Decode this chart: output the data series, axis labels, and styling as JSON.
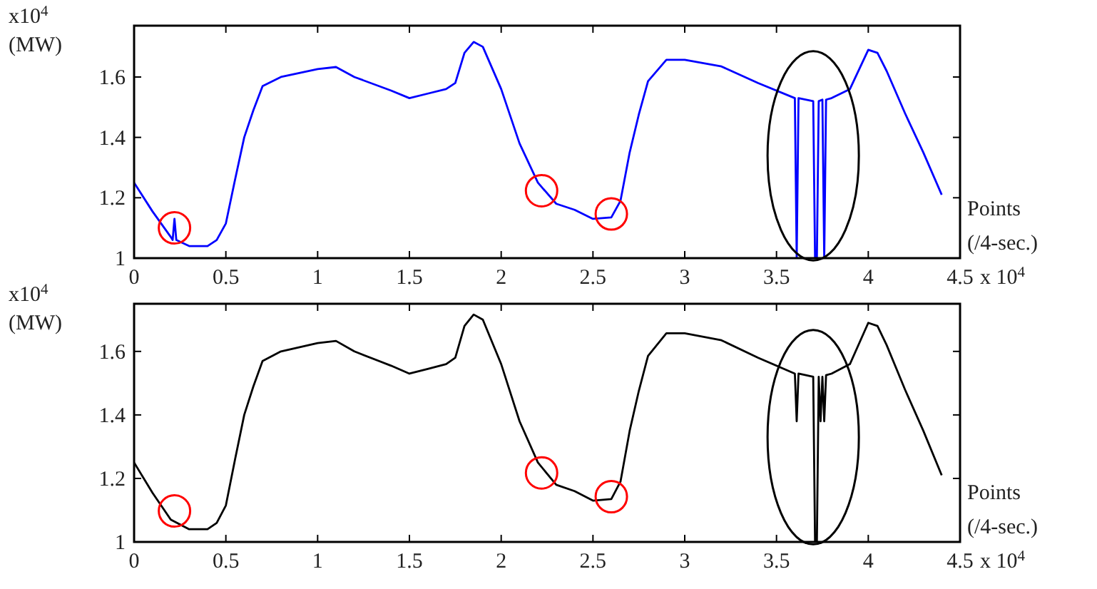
{
  "chart_data": [
    {
      "type": "line",
      "ylabel": "x10$^{4}$\n(MW)",
      "xlabel": "Points\n(/4-sec.)",
      "annotations": [
        "x 10$^{4}$"
      ],
      "xlim": [
        0,
        4.5
      ],
      "xticks": [
        0,
        0.5,
        1,
        1.5,
        2,
        2.5,
        3,
        3.5,
        4,
        4.5
      ],
      "ylim": [
        1,
        1.77
      ],
      "yticks": [
        1,
        1.2,
        1.4,
        1.6
      ],
      "grid": false,
      "series": [
        {
          "color": "#0000ff",
          "x": [
            0,
            0.1,
            0.2,
            0.21,
            0.22,
            0.23,
            0.3,
            0.4,
            0.45,
            0.5,
            0.55,
            0.6,
            0.65,
            0.7,
            0.8,
            1.0,
            1.1,
            1.2,
            1.4,
            1.5,
            1.6,
            1.7,
            1.75,
            1.8,
            1.85,
            1.9,
            2.0,
            2.1,
            2.2,
            2.3,
            2.4,
            2.5,
            2.6,
            2.65,
            2.7,
            2.75,
            2.8,
            2.9,
            3.0,
            3.2,
            3.4,
            3.6,
            3.61,
            3.62,
            3.7,
            3.71,
            3.72,
            3.73,
            3.75,
            3.76,
            3.77,
            3.8,
            3.9,
            4.0,
            4.05,
            4.1,
            4.2,
            4.3,
            4.4
          ],
          "values": [
            1.25,
            1.155,
            1.07,
            1.06,
            1.13,
            1.06,
            1.04,
            1.04,
            1.06,
            1.115,
            1.26,
            1.4,
            1.49,
            1.57,
            1.6,
            1.626,
            1.633,
            1.6,
            1.555,
            1.53,
            1.545,
            1.56,
            1.58,
            1.68,
            1.716,
            1.7,
            1.56,
            1.38,
            1.25,
            1.18,
            1.16,
            1.13,
            1.135,
            1.19,
            1.35,
            1.476,
            1.586,
            1.657,
            1.657,
            1.635,
            1.58,
            1.53,
            1.0,
            1.53,
            1.52,
            1.0,
            1.0,
            1.52,
            1.525,
            1.0,
            1.525,
            1.53,
            1.56,
            1.69,
            1.68,
            1.62,
            1.48,
            1.35,
            1.21
          ]
        }
      ]
    },
    {
      "type": "line",
      "ylabel": "x10$^{4}$\n(MW)",
      "xlabel": "Points\n(/4-sec.)",
      "annotations": [
        "x 10$^{4}$"
      ],
      "xlim": [
        0,
        4.5
      ],
      "xticks": [
        0,
        0.5,
        1,
        1.5,
        2,
        2.5,
        3,
        3.5,
        4,
        4.5
      ],
      "ylim": [
        1,
        1.75
      ],
      "yticks": [
        1,
        1.2,
        1.4,
        1.6
      ],
      "grid": false,
      "series": [
        {
          "color": "#000000",
          "x": [
            0,
            0.1,
            0.2,
            0.3,
            0.4,
            0.45,
            0.5,
            0.55,
            0.6,
            0.65,
            0.7,
            0.8,
            1.0,
            1.1,
            1.2,
            1.4,
            1.5,
            1.6,
            1.7,
            1.75,
            1.8,
            1.85,
            1.9,
            2.0,
            2.1,
            2.2,
            2.3,
            2.4,
            2.5,
            2.6,
            2.65,
            2.7,
            2.75,
            2.8,
            2.9,
            3.0,
            3.2,
            3.4,
            3.6,
            3.61,
            3.62,
            3.7,
            3.71,
            3.72,
            3.73,
            3.74,
            3.75,
            3.76,
            3.77,
            3.8,
            3.9,
            4.0,
            4.05,
            4.1,
            4.2,
            4.3,
            4.4
          ],
          "values": [
            1.25,
            1.155,
            1.07,
            1.04,
            1.04,
            1.06,
            1.115,
            1.26,
            1.4,
            1.49,
            1.57,
            1.6,
            1.626,
            1.633,
            1.6,
            1.555,
            1.53,
            1.545,
            1.56,
            1.58,
            1.68,
            1.716,
            1.7,
            1.56,
            1.38,
            1.25,
            1.18,
            1.16,
            1.13,
            1.135,
            1.19,
            1.35,
            1.476,
            1.586,
            1.657,
            1.657,
            1.635,
            1.58,
            1.53,
            1.38,
            1.53,
            1.52,
            1.0,
            1.0,
            1.52,
            1.38,
            1.52,
            1.38,
            1.525,
            1.53,
            1.56,
            1.69,
            1.68,
            1.62,
            1.48,
            1.35,
            1.21
          ]
        }
      ]
    }
  ]
}
